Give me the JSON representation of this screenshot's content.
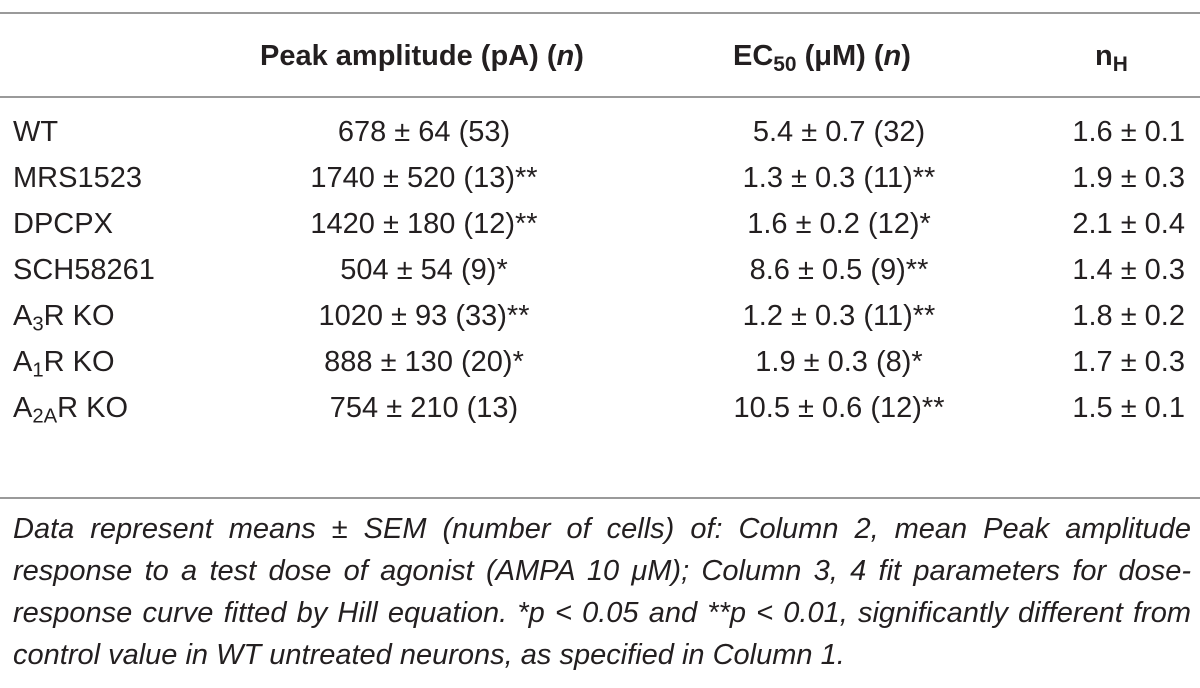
{
  "table": {
    "headers": {
      "col2": "Peak amplitude (pA) (",
      "col2_n": "n",
      "col2_close": ")",
      "col3_pre": "EC",
      "col3_sub": "50",
      "col3_post": " (μM) (",
      "col3_n": "n",
      "col3_close": ")",
      "col4_pre": "n",
      "col4_sub": "H"
    },
    "rows": [
      {
        "label": "WT",
        "label_pre": "",
        "label_sub": "",
        "label_post": "",
        "peak": "678 ± 64 (53)",
        "ec50": "5.4 ± 0.7 (32)",
        "nh": "1.6 ± 0.1"
      },
      {
        "label": "MRS1523",
        "label_pre": "",
        "label_sub": "",
        "label_post": "",
        "peak": "1740 ± 520 (13)**",
        "ec50": "1.3 ± 0.3 (11)**",
        "nh": "1.9 ± 0.3"
      },
      {
        "label": "DPCPX",
        "label_pre": "",
        "label_sub": "",
        "label_post": "",
        "peak": "1420 ± 180 (12)**",
        "ec50": "1.6 ± 0.2 (12)*",
        "nh": "2.1 ± 0.4"
      },
      {
        "label": "SCH58261",
        "label_pre": "",
        "label_sub": "",
        "label_post": "",
        "peak": "504 ± 54 (9)*",
        "ec50": "8.6 ± 0.5 (9)**",
        "nh": "1.4 ± 0.3"
      },
      {
        "label": "",
        "label_pre": "A",
        "label_sub": "3",
        "label_post": "R KO",
        "peak": "1020 ± 93 (33)**",
        "ec50": "1.2 ± 0.3 (11)**",
        "nh": "1.8 ± 0.2"
      },
      {
        "label": "",
        "label_pre": "A",
        "label_sub": "1",
        "label_post": "R KO",
        "peak": "888 ± 130 (20)*",
        "ec50": "1.9 ± 0.3 (8)*",
        "nh": "1.7 ± 0.3"
      },
      {
        "label": "",
        "label_pre": "A",
        "label_sub": "2A",
        "label_post": "R KO",
        "peak": "754 ± 210 (13)",
        "ec50": "10.5 ± 0.6 (12)**",
        "nh": "1.5 ± 0.1"
      }
    ]
  },
  "footnote": "Data represent means ± SEM (number of cells) of: Column 2, mean Peak amplitude response to a test dose of agonist (AMPA 10 μM); Column 3, 4 fit parameters for dose-response curve fitted by Hill equation. *p < 0.05 and **p < 0.01, significantly different from control value in WT untreated neurons, as specified in Column 1."
}
